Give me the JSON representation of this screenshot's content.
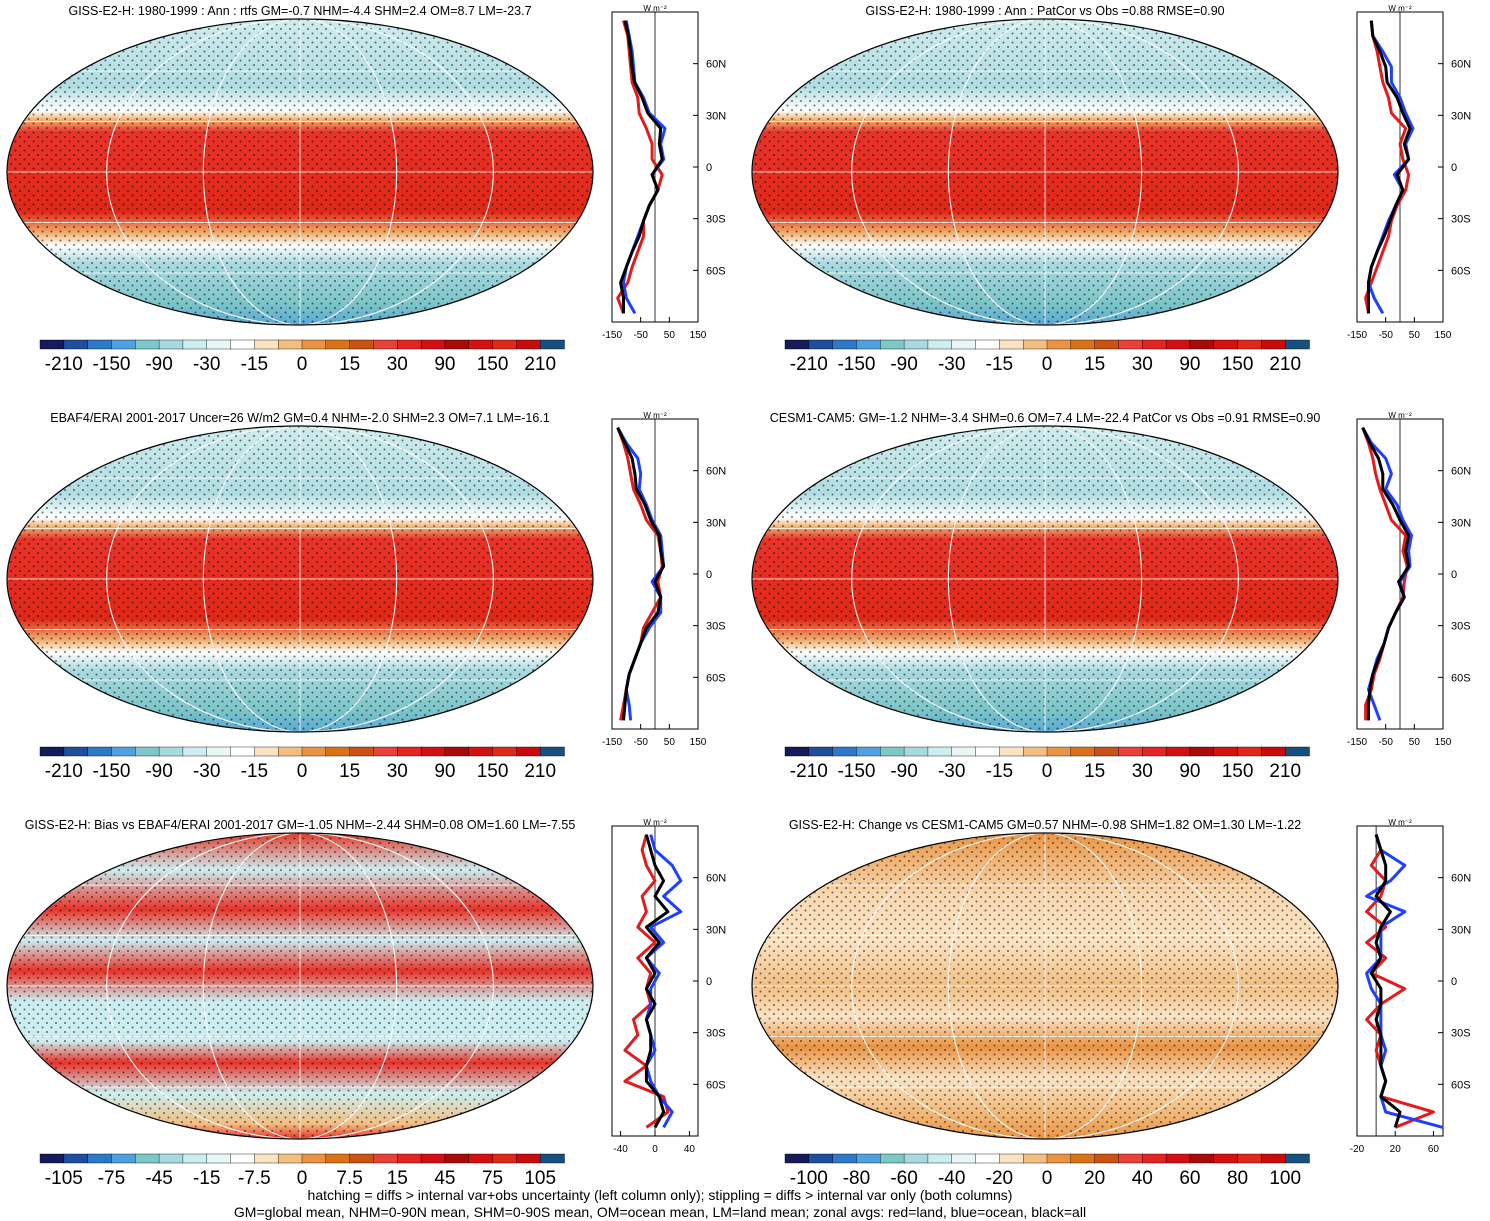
{
  "units": "W m⁻²",
  "chart_data": [
    {
      "type": "heatmap",
      "title": "GISS-E2-H: 1980-1999 : Ann : rtfs GM=-0.7 NHM=-4.4 SHM=2.4 OM=8.7 LM=-23.7",
      "colorbar": [
        "-210",
        "-150",
        "-90",
        "-30",
        "-15",
        "0",
        "15",
        "30",
        "90",
        "150",
        "210"
      ],
      "zonal": {
        "xticks": [
          "-150",
          "-50",
          "50",
          "150"
        ],
        "xlim": [
          -150,
          150
        ],
        "yticks": [
          "60N",
          "30N",
          "0",
          "30S",
          "60S"
        ],
        "series": [
          {
            "color": "#e41a1c",
            "values": [
              -110,
              -95,
              -90,
              -85,
              -80,
              -60,
              -55,
              -30,
              -10,
              -10,
              25,
              10,
              -20,
              -40,
              -40,
              -60,
              -80,
              -95,
              -130,
              -110
            ]
          },
          {
            "color": "#1f3fff",
            "values": [
              -100,
              -90,
              -80,
              -75,
              -70,
              -40,
              -20,
              35,
              20,
              30,
              -10,
              10,
              -20,
              -40,
              -60,
              -80,
              -100,
              -110,
              -100,
              -70
            ]
          },
          {
            "color": "#000000",
            "values": [
              -105,
              -92,
              -85,
              -80,
              -72,
              -45,
              -25,
              20,
              15,
              25,
              -10,
              10,
              -20,
              -40,
              -55,
              -80,
              -100,
              -120,
              -110,
              -110
            ]
          }
        ]
      }
    },
    {
      "type": "heatmap",
      "title": "GISS-E2-H: 1980-1999 : Ann : PatCor vs Obs =0.88 RMSE=0.90",
      "colorbar": [
        "-210",
        "-150",
        "-90",
        "-30",
        "-15",
        "0",
        "15",
        "30",
        "90",
        "150",
        "210"
      ],
      "zonal": {
        "xticks": [
          "-150",
          "-50",
          "50",
          "150"
        ],
        "xlim": [
          -150,
          150
        ],
        "yticks": [
          "60N",
          "30N",
          "0",
          "30S",
          "60S"
        ],
        "series": [
          {
            "color": "#e41a1c",
            "values": [
              -100,
              -95,
              -80,
              -70,
              -60,
              -40,
              -30,
              20,
              0,
              10,
              30,
              20,
              -10,
              -30,
              -40,
              -60,
              -80,
              -100,
              -120,
              -110
            ]
          },
          {
            "color": "#1f3fff",
            "values": [
              -100,
              -95,
              -60,
              -30,
              -30,
              0,
              20,
              45,
              20,
              30,
              -20,
              10,
              -15,
              -40,
              -60,
              -80,
              -100,
              -110,
              -90,
              -60
            ]
          },
          {
            "color": "#000000",
            "values": [
              -100,
              -95,
              -70,
              -50,
              -45,
              -10,
              10,
              35,
              15,
              30,
              -10,
              10,
              -15,
              -35,
              -55,
              -80,
              -100,
              -110,
              -110,
              -110
            ]
          }
        ]
      }
    },
    {
      "type": "heatmap",
      "title": "EBAF4/ERAI 2001-2017 Uncer=26 W/m2 GM=0.4 NHM=-2.0 SHM=2.3 OM=7.1 LM=-16.1",
      "colorbar": [
        "-210",
        "-150",
        "-90",
        "-30",
        "-15",
        "0",
        "15",
        "30",
        "90",
        "150",
        "210"
      ],
      "zonal": {
        "xticks": [
          "-150",
          "-50",
          "50",
          "150"
        ],
        "xlim": [
          -150,
          150
        ],
        "yticks": [
          "60N",
          "30N",
          "0",
          "30S",
          "60S"
        ],
        "series": [
          {
            "color": "#e41a1c",
            "values": [
              -130,
              -110,
              -95,
              -85,
              -75,
              -50,
              -30,
              10,
              20,
              25,
              10,
              20,
              -10,
              -40,
              -50,
              -70,
              -90,
              -100,
              -110,
              -120
            ]
          },
          {
            "color": "#1f3fff",
            "values": [
              -130,
              -100,
              -60,
              -50,
              -55,
              -30,
              -10,
              20,
              25,
              30,
              -10,
              20,
              20,
              -20,
              -50,
              -70,
              -90,
              -100,
              -90,
              -85
            ]
          },
          {
            "color": "#000000",
            "values": [
              -130,
              -105,
              -80,
              -70,
              -65,
              -35,
              -15,
              15,
              20,
              30,
              0,
              20,
              10,
              -30,
              -50,
              -70,
              -90,
              -100,
              -105,
              -110
            ]
          }
        ]
      }
    },
    {
      "type": "heatmap",
      "title": "CESM1-CAM5: GM=-1.2 NHM=-3.4 SHM=0.6 OM=7.4 LM=-22.4 PatCor vs Obs =0.91 RMSE=0.90",
      "colorbar": [
        "-210",
        "-150",
        "-90",
        "-30",
        "-15",
        "0",
        "15",
        "30",
        "90",
        "150",
        "210"
      ],
      "zonal": {
        "xticks": [
          "-150",
          "-50",
          "50",
          "150"
        ],
        "xlim": [
          -150,
          150
        ],
        "yticks": [
          "60N",
          "30N",
          "0",
          "30S",
          "60S"
        ],
        "series": [
          {
            "color": "#e41a1c",
            "values": [
              -130,
              -110,
              -95,
              -85,
              -70,
              -50,
              -30,
              20,
              10,
              25,
              15,
              10,
              -15,
              -40,
              -55,
              -70,
              -90,
              -100,
              -120,
              -120
            ]
          },
          {
            "color": "#1f3fff",
            "values": [
              -130,
              -100,
              -50,
              -30,
              -50,
              -10,
              10,
              40,
              30,
              35,
              0,
              15,
              -15,
              -40,
              -55,
              -80,
              -95,
              -110,
              -90,
              -70
            ]
          },
          {
            "color": "#000000",
            "values": [
              -130,
              -105,
              -75,
              -60,
              -60,
              -25,
              0,
              30,
              20,
              30,
              -5,
              15,
              -15,
              -40,
              -55,
              -75,
              -95,
              -105,
              -110,
              -110
            ]
          }
        ]
      }
    },
    {
      "type": "heatmap",
      "title": "GISS-E2-H: Bias vs EBAF4/ERAI 2001-2017 GM=-1.05 NHM=-2.44 SHM=0.08 OM=1.60 LM=-7.55",
      "colorbar": [
        "-105",
        "-75",
        "-45",
        "-15",
        "-7.5",
        "0",
        "7.5",
        "15",
        "45",
        "75",
        "105"
      ],
      "zonal": {
        "xticks": [
          "-40",
          "0",
          "40"
        ],
        "xlim": [
          -50,
          50
        ],
        "yticks": [
          "60N",
          "30N",
          "0",
          "30S",
          "60S"
        ],
        "series": [
          {
            "color": "#e41a1c",
            "values": [
              -10,
              -15,
              -10,
              0,
              -15,
              -10,
              -20,
              0,
              -20,
              -5,
              -10,
              -5,
              -25,
              -20,
              -35,
              -10,
              -35,
              10,
              15,
              -10
            ]
          },
          {
            "color": "#1f3fff",
            "values": [
              -5,
              0,
              20,
              30,
              10,
              30,
              -5,
              10,
              -10,
              5,
              -5,
              -5,
              -10,
              -5,
              0,
              -10,
              -5,
              5,
              20,
              10
            ]
          },
          {
            "color": "#000000",
            "values": [
              -10,
              -5,
              0,
              10,
              0,
              15,
              -10,
              5,
              -10,
              0,
              -10,
              0,
              -10,
              -5,
              -5,
              -10,
              -10,
              5,
              10,
              0
            ]
          }
        ]
      }
    },
    {
      "type": "heatmap",
      "title": "GISS-E2-H: Change vs CESM1-CAM5 GM=0.57 NHM=-0.98 SHM=1.82 OM=1.30 LM=-1.22",
      "colorbar": [
        "-100",
        "-80",
        "-60",
        "-40",
        "-20",
        "0",
        "20",
        "40",
        "60",
        "80",
        "100"
      ],
      "zonal": {
        "xticks": [
          "-20",
          "20",
          "60"
        ],
        "xlim": [
          -20,
          70
        ],
        "yticks": [
          "60N",
          "30N",
          "0",
          "30S",
          "60S"
        ],
        "series": [
          {
            "color": "#e41a1c",
            "values": [
              0,
              5,
              -5,
              10,
              5,
              -10,
              10,
              -10,
              10,
              -5,
              30,
              5,
              -10,
              5,
              0,
              5,
              10,
              5,
              60,
              20
            ]
          },
          {
            "color": "#1f3fff",
            "values": [
              0,
              5,
              30,
              15,
              -10,
              30,
              5,
              5,
              5,
              -10,
              -5,
              5,
              5,
              5,
              10,
              5,
              10,
              5,
              10,
              70
            ]
          },
          {
            "color": "#000000",
            "values": [
              0,
              5,
              10,
              10,
              0,
              15,
              5,
              0,
              5,
              -5,
              5,
              5,
              0,
              5,
              5,
              5,
              10,
              5,
              25,
              20
            ]
          }
        ]
      }
    }
  ],
  "footnote": [
    "hatching = diffs > internal var+obs uncertainty (left column only); stippling = diffs > internal var only (both columns)",
    "GM=global mean, NHM=0-90N mean, SHM=0-90S mean, OM=ocean mean, LM=land mean; zonal avgs: red=land, blue=ocean, black=all"
  ]
}
